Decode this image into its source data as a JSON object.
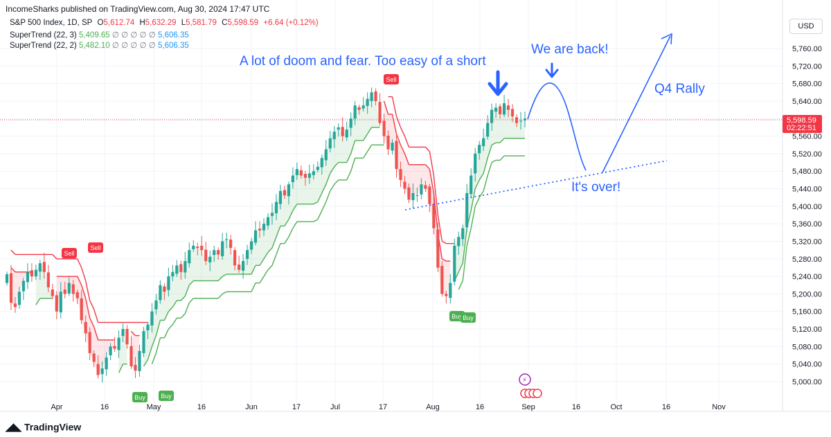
{
  "header": {
    "publisher": "IncomeSharks published on TradingView.com, Aug 30, 2024 17:47 UTC",
    "symbol": "S&P 500 Index, 1D, SP",
    "open_label": "O",
    "open": "5,612.74",
    "high_label": "H",
    "high": "5,632.29",
    "low_label": "L",
    "low": "5,581.79",
    "close_label": "C",
    "close": "5,598.59",
    "change": "+6.64 (+0.12%)"
  },
  "indicators": [
    {
      "name": "SuperTrend (22, 3)",
      "v1": "5,409.65",
      "zeros": "∅ ∅ ∅ ∅ ∅",
      "v2": "5,606.35"
    },
    {
      "name": "SuperTrend (22, 2)",
      "v1": "5,482.10",
      "zeros": "∅ ∅ ∅ ∅ ∅",
      "v2": "5,606.35"
    }
  ],
  "currency": "USD",
  "price_tag": {
    "price": "5,598.59",
    "countdown": "02:22:51"
  },
  "brand": "TradingView",
  "colors": {
    "up": "#26a69a",
    "down": "#ef5350",
    "up_line": "#4caf50",
    "down_line": "#f23645",
    "annotation": "#2962ff",
    "bg": "#ffffff",
    "grid": "#f0f3fa"
  },
  "chart_data": {
    "type": "candlestick",
    "y_ticks": [
      5000,
      5040,
      5080,
      5120,
      5160,
      5200,
      5240,
      5280,
      5320,
      5360,
      5400,
      5440,
      5480,
      5520,
      5560,
      5600,
      5640,
      5680,
      5720,
      5760
    ],
    "y_tick_labels": [
      "5,000.00",
      "5,040.00",
      "5,080.00",
      "5,120.00",
      "5,160.00",
      "5,200.00",
      "5,240.00",
      "5,280.00",
      "5,320.00",
      "5,360.00",
      "5,400.00",
      "5,440.00",
      "5,480.00",
      "5,520.00",
      "5,560.00",
      "5,600.00",
      "5,640.00",
      "5,680.00",
      "5,720.00",
      "5,760.00"
    ],
    "ylim": [
      4975,
      5800
    ],
    "x_tick_labels": [
      "Apr",
      "16",
      "May",
      "16",
      "Jun",
      "17",
      "Jul",
      "17",
      "Aug",
      "16",
      "Sep",
      "16",
      "Oct",
      "16",
      "Nov"
    ],
    "closes": [
      5245,
      5180,
      5170,
      5205,
      5230,
      5250,
      5240,
      5255,
      5270,
      5250,
      5215,
      5195,
      5160,
      5205,
      5200,
      5225,
      5200,
      5190,
      5140,
      5110,
      5065,
      5045,
      5015,
      5030,
      5055,
      5080,
      5075,
      5100,
      5120,
      5085,
      5035,
      5025,
      5070,
      5115,
      5130,
      5160,
      5185,
      5220,
      5205,
      5240,
      5250,
      5265,
      5250,
      5275,
      5300,
      5310,
      5305,
      5300,
      5275,
      5285,
      5300,
      5290,
      5320,
      5325,
      5305,
      5265,
      5255,
      5275,
      5300,
      5320,
      5345,
      5345,
      5360,
      5375,
      5385,
      5410,
      5435,
      5425,
      5450,
      5470,
      5485,
      5470,
      5465,
      5475,
      5480,
      5490,
      5510,
      5530,
      5555,
      5570,
      5580,
      5560,
      5575,
      5600,
      5630,
      5620,
      5630,
      5645,
      5660,
      5640,
      5590,
      5560,
      5530,
      5545,
      5485,
      5460,
      5440,
      5415,
      5430,
      5425,
      5450,
      5440,
      5405,
      5350,
      5260,
      5200,
      5195,
      5225,
      5310,
      5330,
      5350,
      5430,
      5470,
      5520,
      5540,
      5555,
      5590,
      5620,
      5625,
      5610,
      5635,
      5620,
      5605,
      5590,
      5595,
      5600
    ],
    "last_close": 5598.59,
    "supertrend_22_3": {
      "last": 5409.65
    },
    "supertrend_22_2": {
      "last": 5482.1
    },
    "signals": [
      "Sell",
      "Sell",
      "Buy",
      "Buy",
      "Sell",
      "Buy",
      "Buy"
    ]
  },
  "annotations": {
    "doom": "A lot of doom and fear. Too easy of a short",
    "back": "We are back!",
    "q4": "Q4 Rally",
    "over": "It's over!"
  }
}
